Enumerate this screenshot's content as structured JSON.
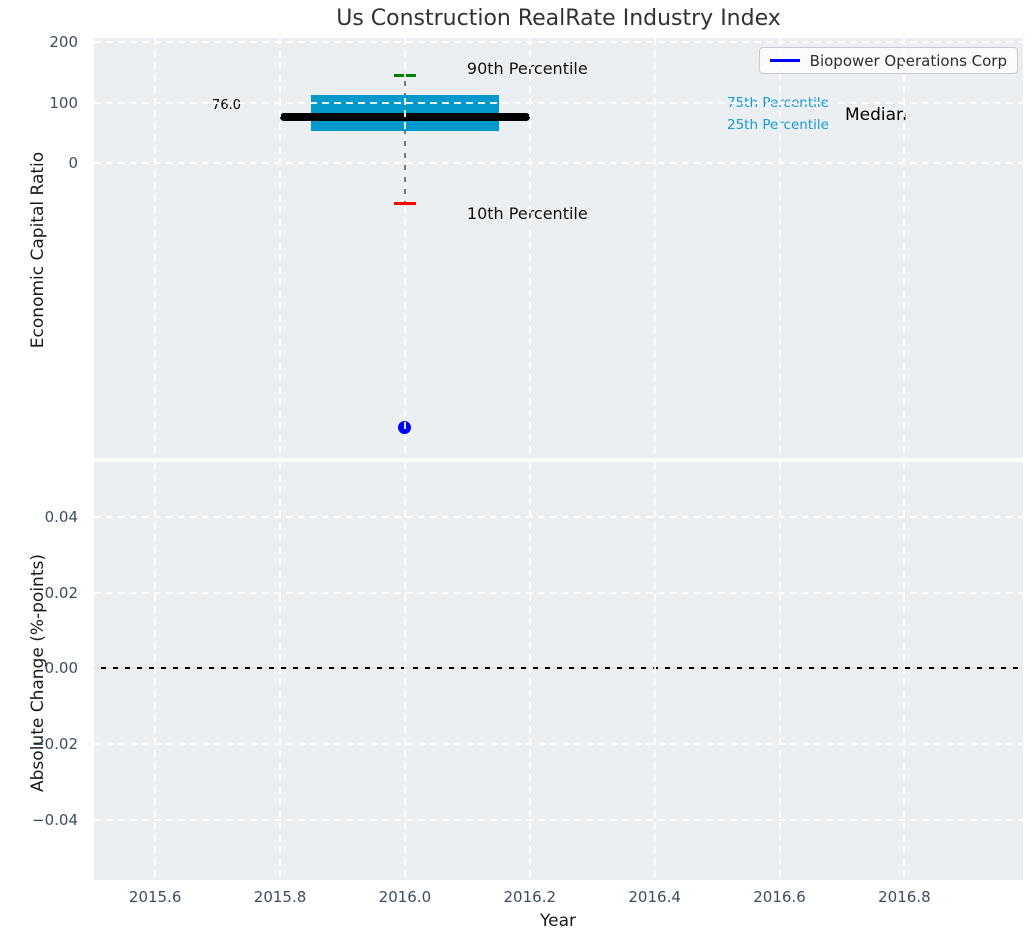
{
  "figure_title": "Us Construction RealRate Industry Index",
  "colors": {
    "plot_background": "#eceff1",
    "gridline": "#ffffff",
    "box_fill": "#0499cd",
    "median_line": "#000000",
    "p90_cap": "#008000",
    "p10_cap": "#ff0000",
    "whisker": "#7a7a7a",
    "company_point": "#0000ff",
    "legend_line": "#0000ff",
    "percentile_text": "#149bd3",
    "tick_label": "#3d4c63",
    "zero_line": "#000000"
  },
  "chart_data": [
    {
      "type": "boxplot",
      "title": "Us Construction RealRate Industry Index",
      "xlabel": "",
      "ylabel": "Economic Capital Ratio",
      "xlim": [
        2015.502,
        2016.99
      ],
      "ylim": [
        -488,
        207
      ],
      "xticks": [
        2015.6,
        2015.8,
        2016.0,
        2016.2,
        2016.4,
        2016.6,
        2016.8
      ],
      "xtick_labels": [
        "2015.6",
        "2015.8",
        "2016.0",
        "2016.2",
        "2016.4",
        "2016.6",
        "2016.8"
      ],
      "yticks": [
        200,
        100,
        0
      ],
      "ytick_labels": [
        "200",
        "100",
        "0"
      ],
      "grid": true,
      "box": {
        "x_center": 2016.0,
        "box_x_left": 2015.85,
        "box_x_right": 2016.15,
        "median_x_left": 2015.8,
        "median_x_right": 2016.2,
        "median": 76.0,
        "q1_25th": 53,
        "q3_75th": 112,
        "p10": -66,
        "p90": 145
      },
      "company_point": {
        "name": "Biopower Operations Corp",
        "x": 2016.0,
        "y": -438
      },
      "annotations": {
        "p90_label": "90th Percentile",
        "p10_label": "10th Percentile",
        "p75_label": "75th Percentile",
        "p25_label": "25th Percentile",
        "median_label": "Median",
        "median_value_label": "76.0"
      },
      "legend": {
        "position": "upper right",
        "entries": [
          "Biopower Operations Corp"
        ]
      }
    },
    {
      "type": "line",
      "title": "",
      "xlabel": "Year",
      "ylabel": "Absolute Change (%-points)",
      "xlim": [
        2015.502,
        2016.99
      ],
      "ylim": [
        -0.056,
        0.0546
      ],
      "xticks": [
        2015.6,
        2015.8,
        2016.0,
        2016.2,
        2016.4,
        2016.6,
        2016.8
      ],
      "xtick_labels": [
        "2015.6",
        "2015.8",
        "2016.0",
        "2016.2",
        "2016.4",
        "2016.6",
        "2016.8"
      ],
      "yticks": [
        0.04,
        0.02,
        0.0,
        -0.02,
        -0.04
      ],
      "ytick_labels": [
        "0.04",
        "0.02",
        "0.00",
        "−0.02",
        "−0.04"
      ],
      "grid": true,
      "zero_line_y": 0.0,
      "series": []
    }
  ]
}
